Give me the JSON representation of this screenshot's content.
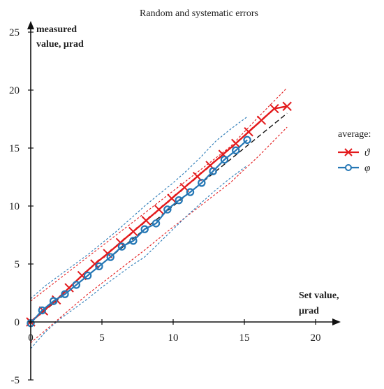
{
  "chart_data": {
    "type": "line",
    "title": "Random and systematic errors",
    "ylabel_lines": [
      "measured",
      "value, μrad"
    ],
    "xlabel_lines": [
      "Set value,",
      "μrad"
    ],
    "xlim": [
      0,
      20
    ],
    "ylim": [
      -5,
      25
    ],
    "x_ticks": [
      0,
      5,
      10,
      15,
      20
    ],
    "y_ticks": [
      -5,
      0,
      5,
      10,
      15,
      20,
      25
    ],
    "grid": false,
    "legend_title": "average:",
    "legend_position": "right",
    "colors": {
      "theta": "#e31a1c",
      "phi": "#2577b5",
      "ideal": "#111111",
      "axis": "#111111"
    },
    "ideal_line": {
      "x": [
        0,
        18
      ],
      "y": [
        0,
        18
      ],
      "style": "dashed"
    },
    "series": [
      {
        "name": "ϑ",
        "key": "theta",
        "marker": "x",
        "x": [
          0,
          0.9,
          1.8,
          2.7,
          3.6,
          4.5,
          5.4,
          6.3,
          7.2,
          8.1,
          9.0,
          9.9,
          10.8,
          11.7,
          12.6,
          13.5,
          14.4,
          15.3,
          16.2,
          17.1,
          18.0
        ],
        "y": [
          0,
          0.95,
          1.9,
          2.95,
          4.0,
          5.0,
          5.9,
          6.85,
          7.8,
          8.75,
          9.7,
          10.65,
          11.6,
          12.55,
          13.5,
          14.45,
          15.4,
          16.4,
          17.4,
          18.4,
          18.6
        ]
      },
      {
        "name": "φ",
        "key": "phi",
        "marker": "o",
        "x": [
          0,
          0.8,
          1.6,
          2.4,
          3.2,
          4.0,
          4.8,
          5.6,
          6.4,
          7.2,
          8.0,
          8.8,
          9.6,
          10.4,
          11.2,
          12.0,
          12.8,
          13.6,
          14.4,
          15.2
        ],
        "y": [
          -0.1,
          1.0,
          1.8,
          2.4,
          3.2,
          4.0,
          4.8,
          5.6,
          6.5,
          7.0,
          8.0,
          8.5,
          9.7,
          10.5,
          11.2,
          12.0,
          13.0,
          14.0,
          14.8,
          15.7
        ]
      }
    ],
    "bands": [
      {
        "key": "theta",
        "side": "upper",
        "x": [
          0,
          2,
          4,
          6,
          8,
          10,
          12,
          14,
          16,
          18
        ],
        "y": [
          1.8,
          3.7,
          5.6,
          7.5,
          9.4,
          11.3,
          13.2,
          15.1,
          17.7,
          20.2
        ]
      },
      {
        "key": "theta",
        "side": "lower",
        "x": [
          0,
          2,
          4,
          6,
          8,
          10,
          12,
          14,
          16,
          18
        ],
        "y": [
          -1.8,
          0.3,
          2.4,
          4.3,
          6.2,
          8.2,
          10.1,
          12.0,
          14.3,
          16.8
        ]
      },
      {
        "key": "phi",
        "side": "upper",
        "x": [
          0,
          1,
          2,
          3,
          4,
          5,
          6,
          7,
          8,
          9,
          10,
          11,
          12,
          13,
          14,
          15.2
        ],
        "y": [
          2.0,
          3.1,
          4.0,
          4.9,
          5.8,
          6.8,
          7.8,
          8.9,
          10.0,
          11.0,
          12.0,
          13.1,
          14.3,
          15.6,
          16.6,
          17.7
        ]
      },
      {
        "key": "phi",
        "side": "lower",
        "x": [
          0,
          1,
          2,
          3,
          4,
          5,
          6,
          7,
          8,
          9,
          10,
          11,
          12,
          13,
          14,
          15.2
        ],
        "y": [
          -2.3,
          -0.9,
          0.2,
          1.1,
          2.0,
          3.0,
          3.9,
          4.8,
          5.6,
          6.8,
          8.0,
          9.2,
          10.3,
          11.4,
          12.4,
          13.5
        ]
      }
    ]
  }
}
